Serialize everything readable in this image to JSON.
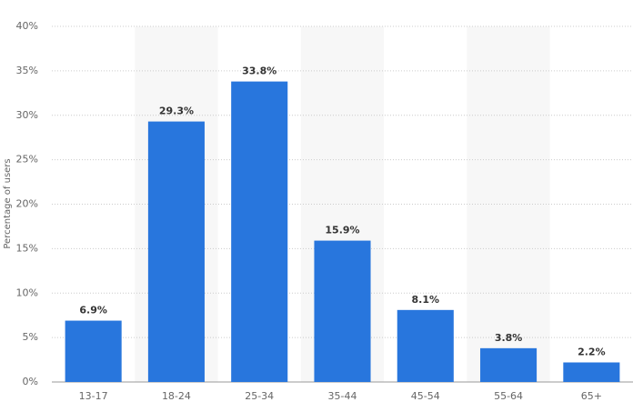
{
  "chart_data": {
    "type": "bar",
    "y_label": "Percentage of users",
    "categories": [
      "13-17",
      "18-24",
      "25-34",
      "35-44",
      "45-54",
      "55-64",
      "65+"
    ],
    "values": [
      6.9,
      29.3,
      33.8,
      15.9,
      8.1,
      3.8,
      2.2
    ],
    "value_labels": [
      "6.9%",
      "29.3%",
      "33.8%",
      "15.9%",
      "8.1%",
      "3.8%",
      "2.2%"
    ],
    "color": "#2876dd",
    "ylim": [
      0,
      40
    ],
    "yticks": [
      {
        "value": 0,
        "label": "0%"
      },
      {
        "value": 5,
        "label": "5%"
      },
      {
        "value": 10,
        "label": "10%"
      },
      {
        "value": 15,
        "label": "15%"
      },
      {
        "value": 20,
        "label": "20%"
      },
      {
        "value": 25,
        "label": "25%"
      },
      {
        "value": 30,
        "label": "30%"
      },
      {
        "value": 35,
        "label": "35%"
      },
      {
        "value": 40,
        "label": "40%"
      }
    ],
    "grid": true
  }
}
